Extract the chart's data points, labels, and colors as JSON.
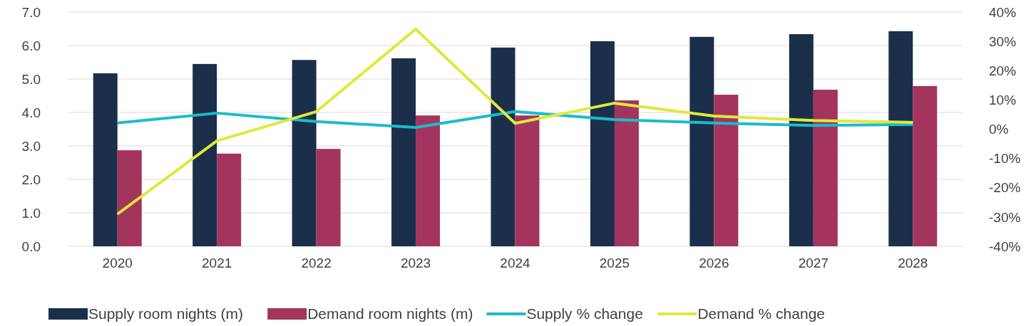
{
  "chart_data": {
    "type": "bar",
    "categories": [
      "2020",
      "2021",
      "2022",
      "2023",
      "2024",
      "2025",
      "2026",
      "2027",
      "2028"
    ],
    "series": [
      {
        "name": "Supply room nights (m)",
        "color": "#1b2f4b",
        "values": [
          5.17,
          5.45,
          5.57,
          5.62,
          5.94,
          6.13,
          6.26,
          6.34,
          6.43
        ]
      },
      {
        "name": "Demand room nights (m)",
        "color": "#a3345e",
        "values": [
          2.87,
          2.77,
          2.91,
          3.91,
          3.91,
          4.36,
          4.53,
          4.68,
          4.79
        ]
      },
      {
        "name": "Supply % change",
        "type": "line",
        "axis": "y2",
        "color": "#1bbccb",
        "values": [
          2.1,
          5.5,
          2.6,
          0.6,
          6,
          3.3,
          2.1,
          1.3,
          1.6
        ]
      },
      {
        "name": "Demand % change",
        "type": "line",
        "axis": "y2",
        "color": "#dfe93a",
        "values": [
          -29,
          -4,
          6,
          34.2,
          2,
          8.9,
          4.5,
          3,
          2.3
        ]
      }
    ],
    "ylim": [
      0,
      7
    ],
    "yticks": [
      {
        "value": 0,
        "label": "0.0"
      },
      {
        "value": 1,
        "label": "1.0"
      },
      {
        "value": 2,
        "label": "2.0"
      },
      {
        "value": 3,
        "label": "3.0"
      },
      {
        "value": 4,
        "label": "4.0"
      },
      {
        "value": 5,
        "label": "5.0"
      },
      {
        "value": 6,
        "label": "6.0"
      },
      {
        "value": 7,
        "label": "7.0"
      }
    ],
    "y2lim": [
      -40,
      40
    ],
    "y2ticks": [
      {
        "value": -40,
        "label": "-40%"
      },
      {
        "value": -30,
        "label": "-30%"
      },
      {
        "value": -20,
        "label": "-20%"
      },
      {
        "value": -10,
        "label": "-10%"
      },
      {
        "value": 0,
        "label": "0%"
      },
      {
        "value": 10,
        "label": "10%"
      },
      {
        "value": 20,
        "label": "20%"
      },
      {
        "value": 30,
        "label": "30%"
      },
      {
        "value": 40,
        "label": "40%"
      }
    ],
    "grid": "y",
    "legend": "bottom",
    "marker": "none",
    "line_style": "solid"
  }
}
